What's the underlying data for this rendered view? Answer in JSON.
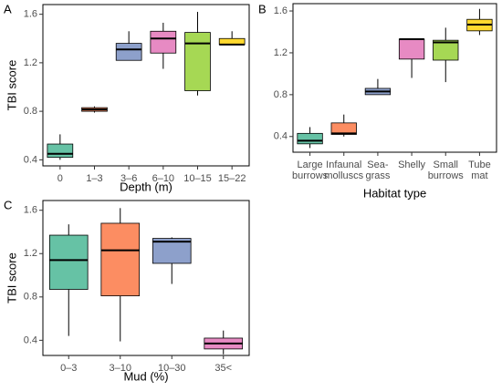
{
  "chart_data": [
    {
      "type": "box",
      "panel_label": "A",
      "x_label": "Depth (m)",
      "y_label": "TBI score",
      "categories": [
        [
          "0"
        ],
        [
          "1–3"
        ],
        [
          "3–6"
        ],
        [
          "6–10"
        ],
        [
          "10–15"
        ],
        [
          "15–22"
        ]
      ],
      "colors": [
        "#66c2a5",
        "#fc8d62",
        "#8da0cb",
        "#e78ac3",
        "#a6d854",
        "#ffd92f"
      ],
      "boxes": [
        {
          "whisker_low": 0.4,
          "q1": 0.42,
          "median": 0.45,
          "q3": 0.53,
          "whisker_high": 0.61
        },
        {
          "whisker_low": 0.79,
          "q1": 0.8,
          "median": 0.815,
          "q3": 0.83,
          "whisker_high": 0.84
        },
        {
          "whisker_low": 1.22,
          "q1": 1.22,
          "median": 1.31,
          "q3": 1.36,
          "whisker_high": 1.46
        },
        {
          "whisker_low": 1.15,
          "q1": 1.28,
          "median": 1.4,
          "q3": 1.46,
          "whisker_high": 1.53
        },
        {
          "whisker_low": 0.93,
          "q1": 0.97,
          "median": 1.36,
          "q3": 1.45,
          "whisker_high": 1.62
        },
        {
          "whisker_low": 1.35,
          "q1": 1.35,
          "median": 1.35,
          "q3": 1.4,
          "whisker_high": 1.46
        }
      ],
      "ylim": [
        0.35,
        1.68
      ],
      "yticks": [
        0.4,
        0.8,
        1.2,
        1.6
      ]
    },
    {
      "type": "box",
      "panel_label": "B",
      "x_label": "Habitat type",
      "categories": [
        [
          "Large",
          "burrows"
        ],
        [
          "Infaunal",
          "molluscs"
        ],
        [
          "Sea-",
          "grass"
        ],
        [
          "Shelly"
        ],
        [
          "Small",
          "burrows"
        ],
        [
          "Tube",
          "mat"
        ]
      ],
      "colors": [
        "#66c2a5",
        "#fc8d62",
        "#8da0cb",
        "#e78ac3",
        "#a6d854",
        "#ffd92f"
      ],
      "boxes": [
        {
          "whisker_low": 0.29,
          "q1": 0.33,
          "median": 0.36,
          "q3": 0.43,
          "whisker_high": 0.49
        },
        {
          "whisker_low": 0.4,
          "q1": 0.42,
          "median": 0.43,
          "q3": 0.53,
          "whisker_high": 0.61
        },
        {
          "whisker_low": 0.8,
          "q1": 0.8,
          "median": 0.83,
          "q3": 0.86,
          "whisker_high": 0.95
        },
        {
          "whisker_low": 0.96,
          "q1": 1.14,
          "median": 1.33,
          "q3": 1.33,
          "whisker_high": 1.33
        },
        {
          "whisker_low": 0.92,
          "q1": 1.13,
          "median": 1.3,
          "q3": 1.32,
          "whisker_high": 1.44
        },
        {
          "whisker_low": 1.37,
          "q1": 1.41,
          "median": 1.47,
          "q3": 1.52,
          "whisker_high": 1.62
        }
      ],
      "ylim": [
        0.25,
        1.67
      ],
      "yticks": [
        0.4,
        0.8,
        1.2,
        1.6
      ]
    },
    {
      "type": "box",
      "panel_label": "C",
      "x_label": "Mud (%)",
      "y_label": "TBI score",
      "categories": [
        [
          "0–3"
        ],
        [
          "3–10"
        ],
        [
          "10–30"
        ],
        [
          "35<"
        ]
      ],
      "colors": [
        "#66c2a5",
        "#fc8d62",
        "#8da0cb",
        "#e78ac3"
      ],
      "boxes": [
        {
          "whisker_low": 0.44,
          "q1": 0.87,
          "median": 1.14,
          "q3": 1.37,
          "whisker_high": 1.47
        },
        {
          "whisker_low": 0.39,
          "q1": 0.81,
          "median": 1.23,
          "q3": 1.48,
          "whisker_high": 1.62
        },
        {
          "whisker_low": 0.92,
          "q1": 1.11,
          "median": 1.31,
          "q3": 1.34,
          "whisker_high": 1.35
        },
        {
          "whisker_low": 0.27,
          "q1": 0.32,
          "median": 0.37,
          "q3": 0.42,
          "whisker_high": 0.49
        }
      ],
      "ylim": [
        0.26,
        1.69
      ],
      "yticks": [
        0.4,
        0.8,
        1.2,
        1.6
      ]
    }
  ]
}
